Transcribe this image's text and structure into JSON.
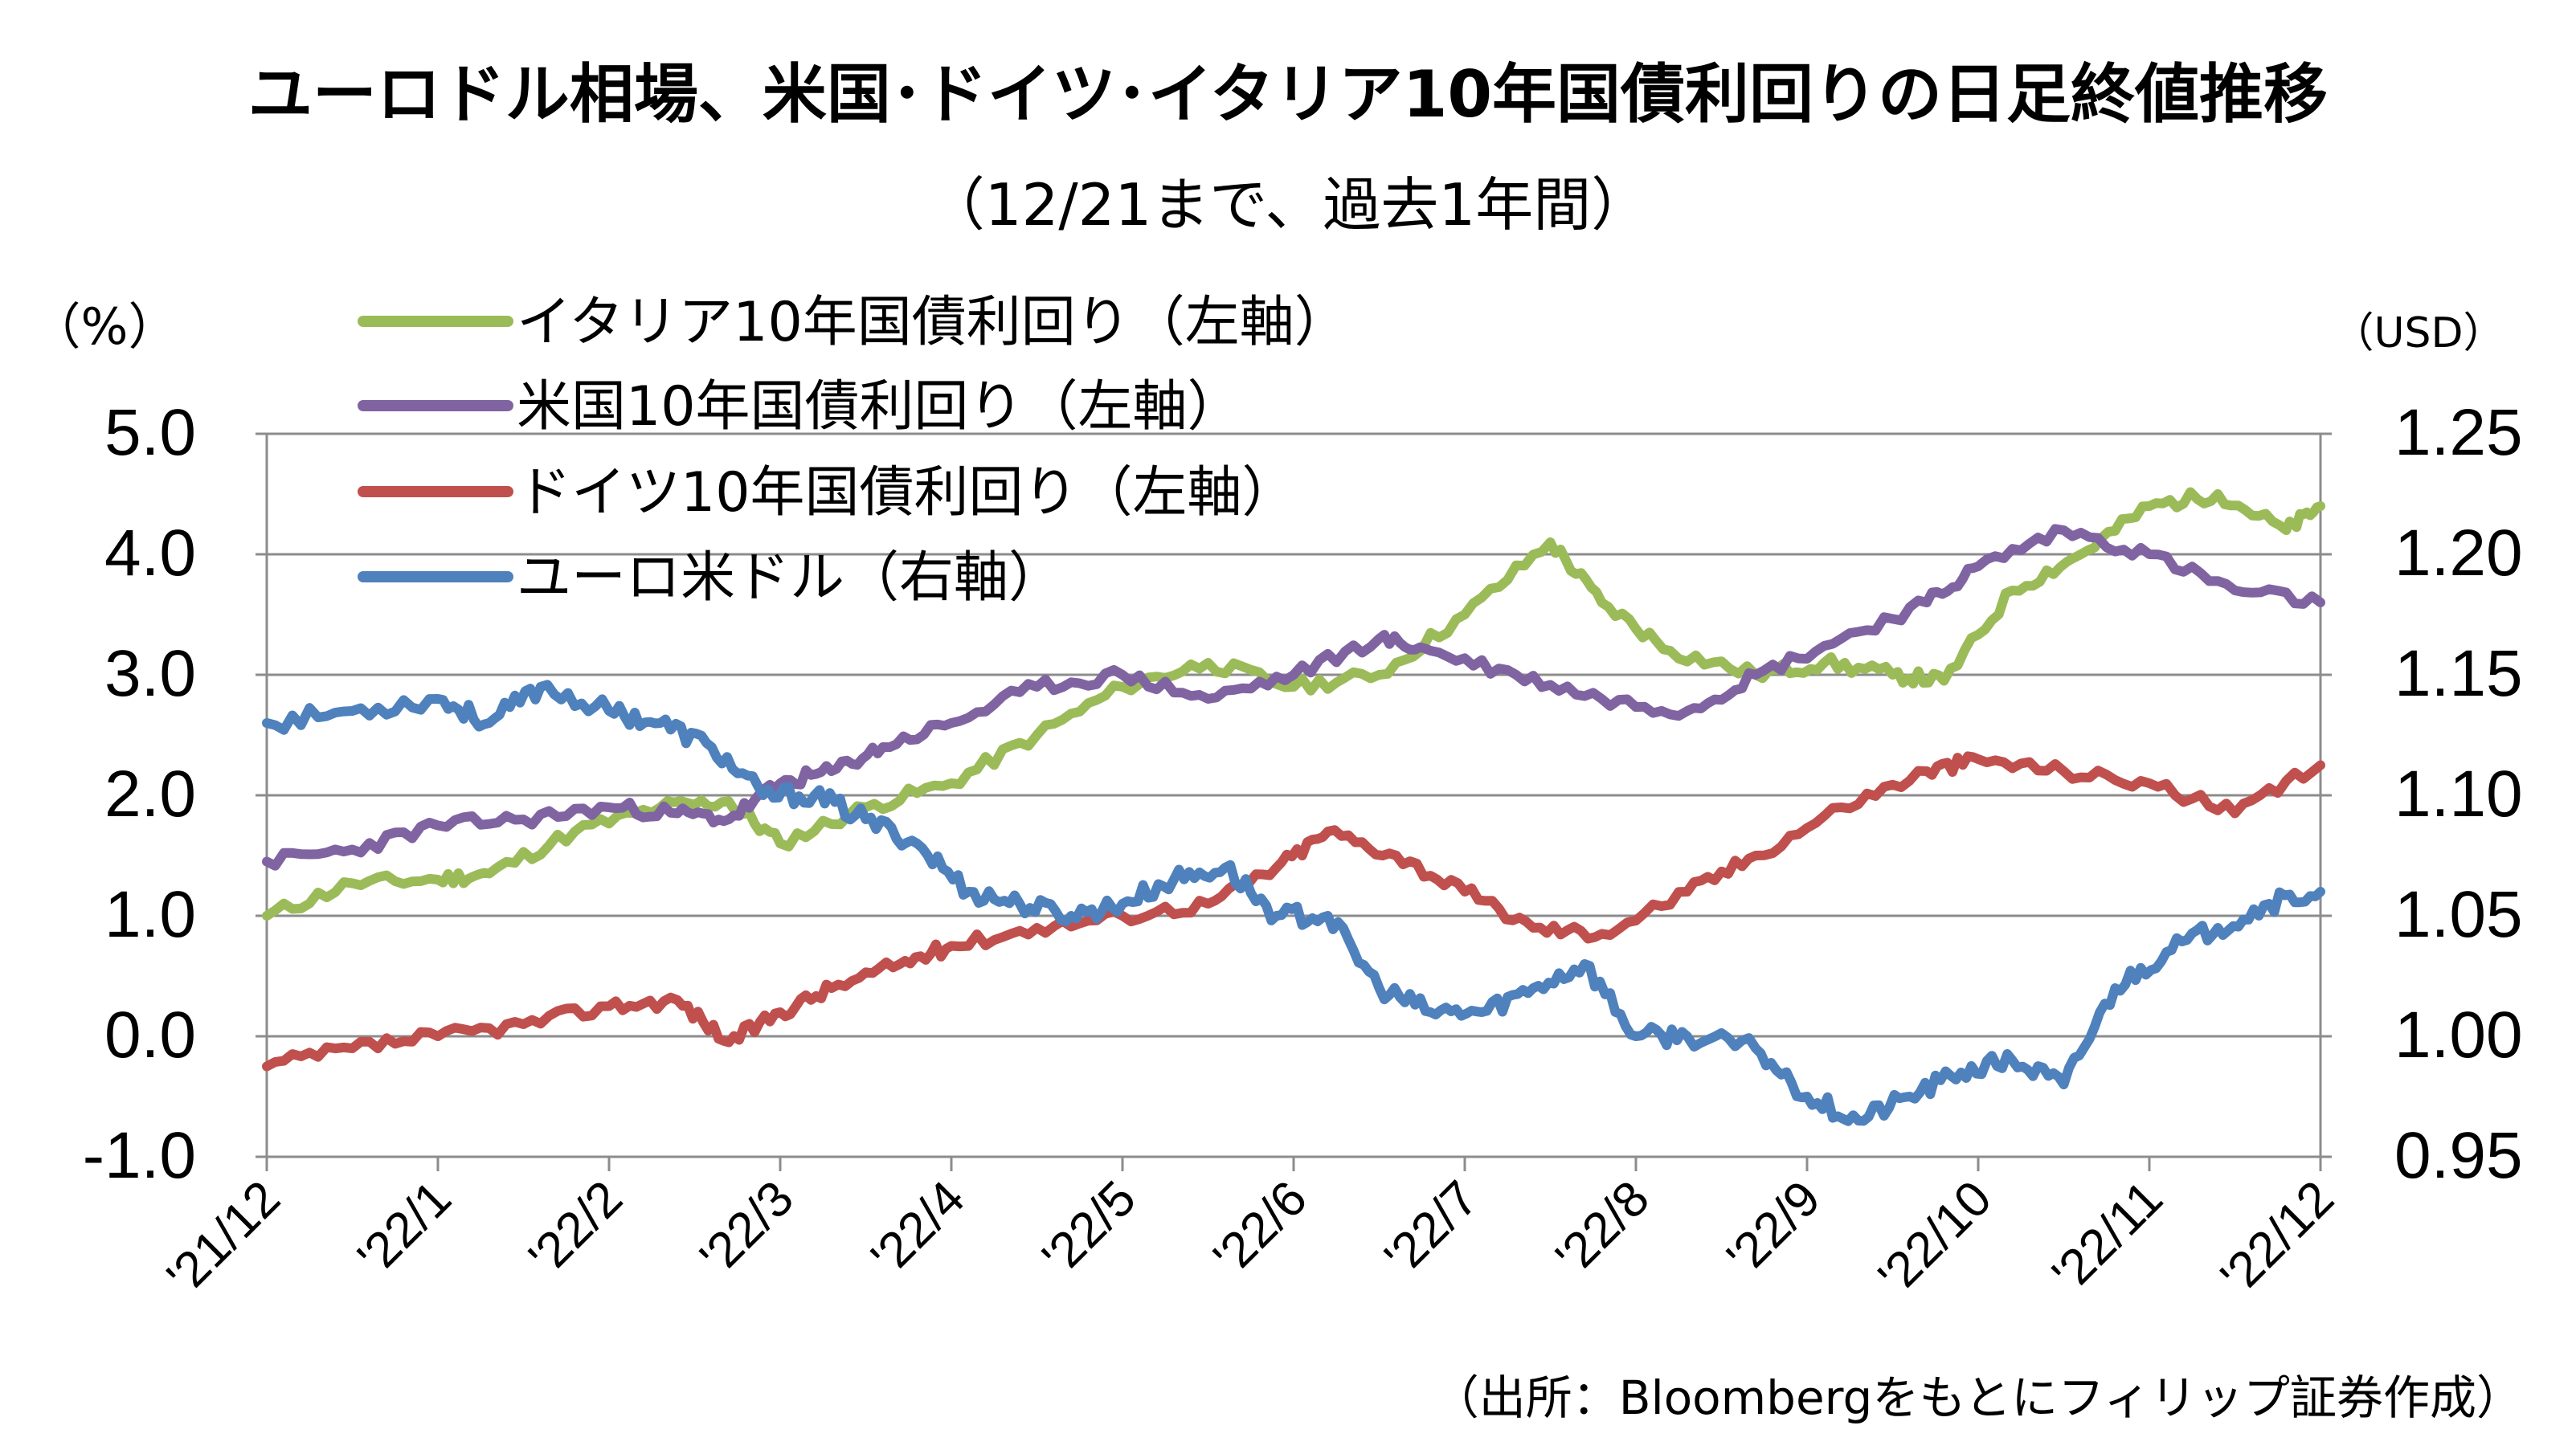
{
  "chart_data": {
    "type": "line",
    "title": "ユーロドル相場、米国･ドイツ･イタリア10年国債利回りの日足終値推移",
    "subtitle": "（12/21まで、過去1年間）",
    "y_left_unit": "（%）",
    "y_right_unit": "（USD）",
    "source": "（出所：Bloombergをもとにフィリップ証券作成）",
    "ylim_left": [
      -1.0,
      5.0
    ],
    "ylim_right": [
      0.95,
      1.25
    ],
    "y_left_ticks": [
      "5.0",
      "4.0",
      "3.0",
      "2.0",
      "1.0",
      "0.0",
      "-1.0"
    ],
    "y_right_ticks": [
      "1.25",
      "1.20",
      "1.15",
      "1.10",
      "1.05",
      "1.00",
      "0.95"
    ],
    "negative_tick_color": "#ff0000",
    "x_tick_labels": [
      "'21/12",
      "'22/1",
      "'22/2",
      "'22/3",
      "'22/4",
      "'22/5",
      "'22/6",
      "'22/7",
      "'22/8",
      "'22/9",
      "'22/10",
      "'22/11",
      "'22/12"
    ],
    "grid": "horizontal",
    "legend_position": "top-left",
    "series": [
      {
        "name": "イタリア10年国債利回り（左軸）",
        "axis": "left",
        "color": "#9bbb59",
        "x": [
          0,
          0.5,
          1,
          1.3,
          1.8,
          2.3,
          2.7,
          3.0,
          3.5,
          4.0,
          4.5,
          5.0,
          5.5,
          6.0,
          6.5,
          7.0,
          7.5,
          7.8,
          8.2,
          8.7,
          9.1,
          9.5,
          9.8,
          10.2,
          10.6,
          11.0,
          11.4,
          11.8,
          12.0
        ],
        "values": [
          1.0,
          1.27,
          1.3,
          1.35,
          1.7,
          1.9,
          1.95,
          1.6,
          1.9,
          2.1,
          2.5,
          2.9,
          3.1,
          2.9,
          3.0,
          3.5,
          4.1,
          3.6,
          3.2,
          3.0,
          3.1,
          3.0,
          2.95,
          3.7,
          4.0,
          4.4,
          4.5,
          4.2,
          4.4
        ]
      },
      {
        "name": "米国10年国債利回り（左軸）",
        "axis": "left",
        "color": "#8064a2",
        "x": [
          0,
          0.5,
          1,
          1.5,
          2.0,
          2.4,
          2.7,
          3.0,
          3.3,
          3.6,
          4.0,
          4.5,
          5.0,
          5.5,
          6.0,
          6.5,
          6.8,
          7.3,
          7.8,
          8.3,
          8.7,
          9.2,
          9.7,
          10.0,
          10.5,
          11.0,
          11.5,
          12.0
        ],
        "values": [
          1.45,
          1.55,
          1.75,
          1.8,
          1.9,
          1.85,
          1.8,
          2.1,
          2.2,
          2.4,
          2.6,
          2.9,
          3.0,
          2.8,
          3.0,
          3.3,
          3.2,
          3.0,
          2.8,
          2.7,
          3.0,
          3.3,
          3.6,
          3.9,
          4.2,
          4.0,
          3.7,
          3.6
        ]
      },
      {
        "name": "ドイツ10年国債利回り（左軸）",
        "axis": "left",
        "color": "#c0504d",
        "x": [
          0,
          0.5,
          1,
          1.5,
          2.0,
          2.4,
          2.7,
          3.0,
          3.3,
          3.7,
          4.0,
          4.5,
          5.0,
          5.5,
          5.9,
          6.2,
          6.6,
          7.0,
          7.4,
          7.8,
          8.3,
          8.7,
          9.2,
          9.7,
          10.0,
          10.5,
          11.0,
          11.5,
          12.0
        ],
        "values": [
          -0.25,
          -0.1,
          0.0,
          0.1,
          0.25,
          0.3,
          -0.05,
          0.2,
          0.4,
          0.6,
          0.75,
          0.9,
          1.0,
          1.1,
          1.4,
          1.7,
          1.5,
          1.2,
          0.9,
          0.85,
          1.2,
          1.5,
          1.9,
          2.2,
          2.3,
          2.2,
          2.1,
          1.85,
          2.25
        ]
      },
      {
        "name": "ユーロ米ドル（右軸）",
        "axis": "right",
        "color": "#4f81bd",
        "x": [
          0,
          0.5,
          1,
          1.3,
          1.6,
          2.0,
          2.3,
          2.6,
          2.9,
          3.2,
          3.5,
          3.8,
          4.1,
          4.4,
          4.7,
          5.0,
          5.3,
          5.6,
          5.9,
          6.2,
          6.5,
          6.8,
          7.1,
          7.4,
          7.7,
          8.0,
          8.3,
          8.7,
          9.0,
          9.3,
          9.6,
          9.9,
          10.2,
          10.5,
          10.8,
          11.1,
          11.4,
          11.7,
          12.0
        ],
        "values": [
          1.13,
          1.135,
          1.14,
          1.13,
          1.145,
          1.135,
          1.13,
          1.12,
          1.1,
          1.1,
          1.09,
          1.08,
          1.06,
          1.055,
          1.05,
          1.055,
          1.065,
          1.07,
          1.05,
          1.05,
          1.02,
          1.01,
          1.01,
          1.02,
          1.03,
          1.0,
          1.0,
          0.995,
          0.975,
          0.965,
          0.975,
          0.985,
          0.99,
          0.98,
          1.02,
          1.035,
          1.045,
          1.055,
          1.06
        ]
      }
    ]
  }
}
